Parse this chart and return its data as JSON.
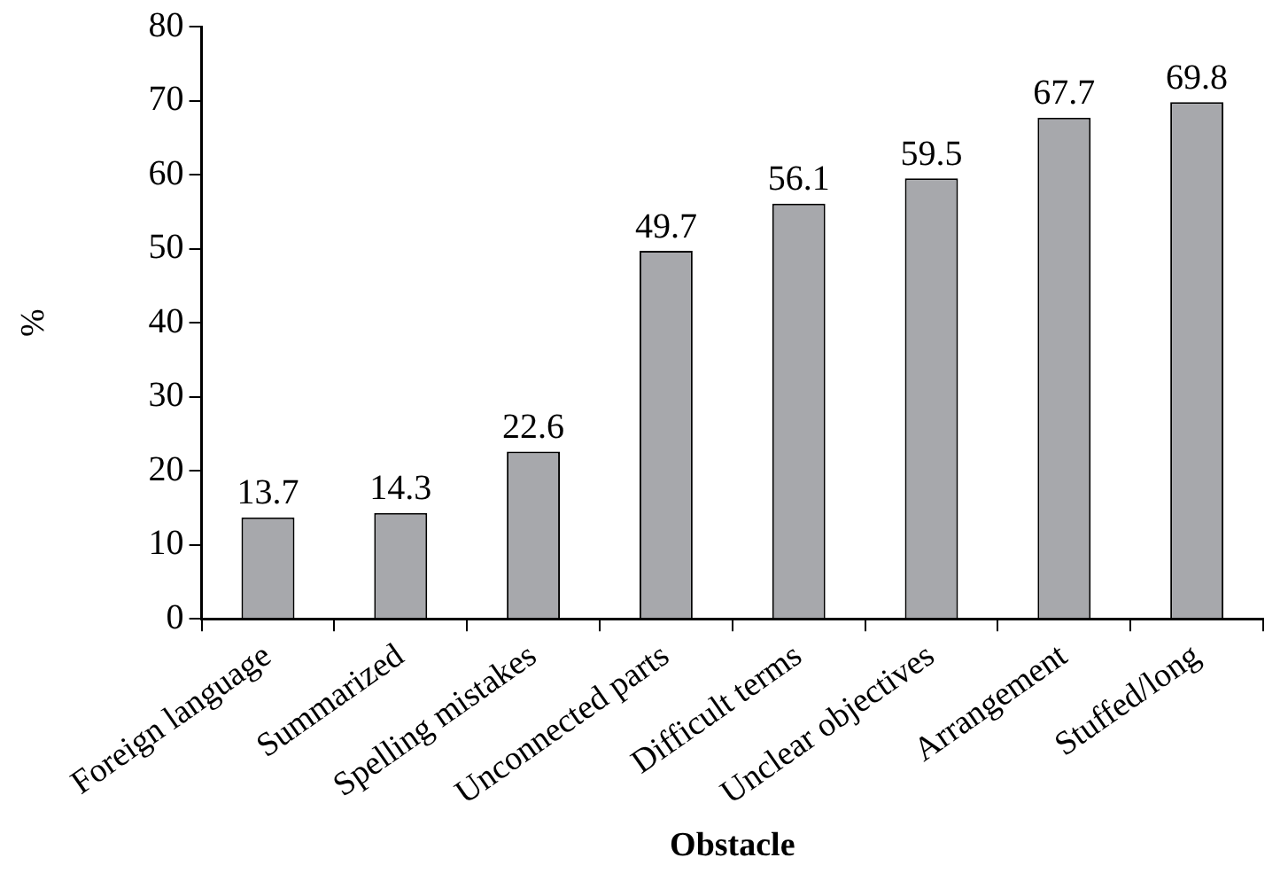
{
  "chart_data": {
    "type": "bar",
    "xlabel": "Obstacle",
    "ylabel": "%",
    "categories": [
      "Foreign language",
      "Summarized",
      "Spelling mistakes",
      "Unconnected parts",
      "Difficult terms",
      "Unclear objectives",
      "Arrangement",
      "Stuffed/long"
    ],
    "values": [
      13.7,
      14.3,
      22.6,
      49.7,
      56.1,
      59.5,
      67.7,
      69.8
    ],
    "color": "#a7a8ac",
    "ylim": [
      0,
      80
    ],
    "yticks": [
      0,
      10,
      20,
      30,
      40,
      50,
      60,
      70,
      80
    ],
    "data_labels": true,
    "grid": false,
    "legend": false
  }
}
